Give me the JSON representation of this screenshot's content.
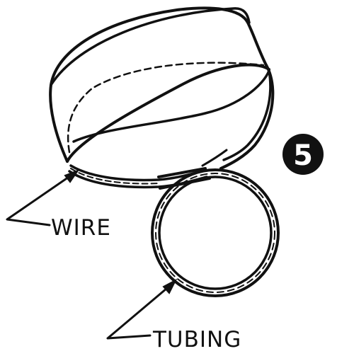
{
  "labels": {
    "wire": "WIRE",
    "tubing": "TUBING"
  },
  "step_badge": {
    "number": "5"
  },
  "colors": {
    "ink": "#111111",
    "paper": "#ffffff"
  }
}
